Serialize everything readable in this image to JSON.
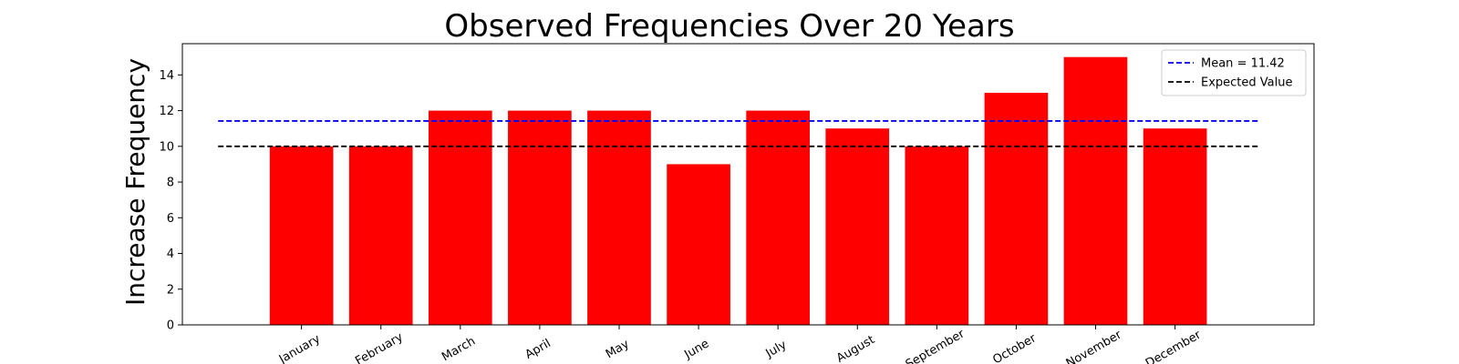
{
  "chart_data": {
    "type": "bar",
    "title": "Observed Frequencies Over 20 Years",
    "xlabel": "",
    "ylabel": "Increase Frequency",
    "categories": [
      "January",
      "February",
      "March",
      "April",
      "May",
      "June",
      "July",
      "August",
      "September",
      "October",
      "November",
      "December"
    ],
    "values": [
      10,
      10,
      12,
      12,
      12,
      9,
      12,
      11,
      10,
      13,
      15,
      11
    ],
    "ylim": [
      0,
      15.75
    ],
    "yticks": [
      0,
      2,
      4,
      6,
      8,
      10,
      12,
      14
    ],
    "xlim": [
      -1.5,
      12.75
    ],
    "bar_color": "#ff0000",
    "grid": false,
    "legend_position": "top-right",
    "reference_lines": [
      {
        "label": "Mean = 11.42",
        "value": 11.42,
        "color": "#0000ff",
        "style": "dashed"
      },
      {
        "label": "Expected Value",
        "value": 10,
        "color": "#000000",
        "style": "dashed"
      }
    ]
  }
}
